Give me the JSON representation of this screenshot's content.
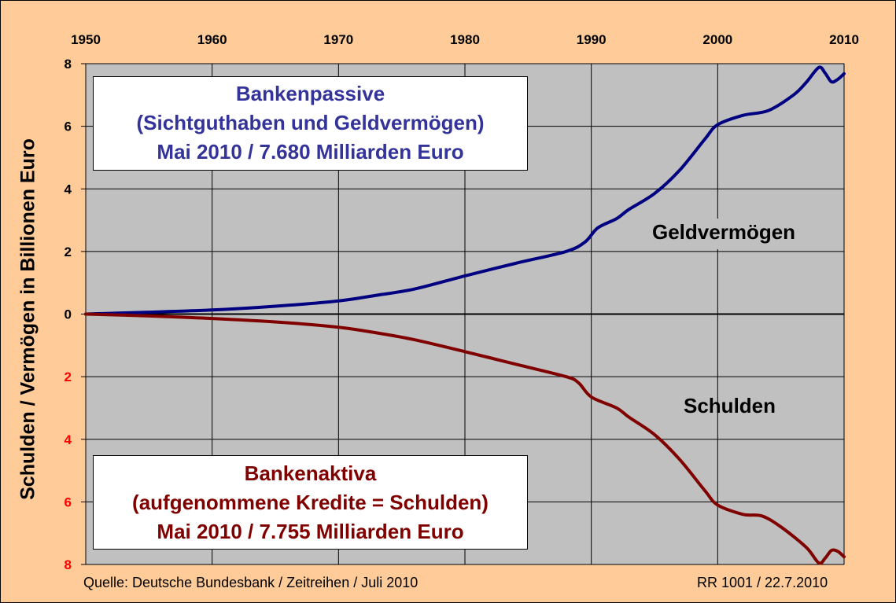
{
  "chart_data": {
    "type": "line",
    "x_ticks": [
      "1950",
      "1960",
      "1970",
      "1980",
      "1990",
      "2000",
      "2010"
    ],
    "xlim": [
      1950,
      2010
    ],
    "ylim": [
      -8,
      8
    ],
    "y_ticks_upper": [
      "8",
      "6",
      "4",
      "2",
      "0"
    ],
    "y_ticks_lower": [
      "2",
      "4",
      "6",
      "8"
    ],
    "ylabel": "Schulden / Vermögen in Billionen Euro",
    "grid": true,
    "colors": {
      "background": "#ffcc99",
      "plot_area": "#c0c0c0",
      "upper": "#000080",
      "lower": "#800000",
      "lower_ticks": "#ff0000"
    },
    "series": [
      {
        "name": "Geldvermögen",
        "x": [
          1950,
          1955,
          1960,
          1965,
          1970,
          1973,
          1976,
          1980,
          1984,
          1988,
          1989.5,
          1990.5,
          1992,
          1993,
          1995,
          1997,
          1999,
          2000,
          2002,
          2004,
          2006,
          2007,
          2008,
          2008.5,
          2009,
          2009.5,
          2010
        ],
        "values": [
          0.0,
          0.06,
          0.13,
          0.25,
          0.42,
          0.6,
          0.8,
          1.22,
          1.62,
          2.0,
          2.3,
          2.75,
          3.05,
          3.35,
          3.85,
          4.6,
          5.6,
          6.05,
          6.35,
          6.5,
          7.0,
          7.4,
          7.88,
          7.7,
          7.42,
          7.5,
          7.68
        ]
      },
      {
        "name": "Schulden",
        "x": [
          1950,
          1955,
          1960,
          1965,
          1970,
          1973,
          1976,
          1980,
          1984,
          1988,
          1989,
          1990,
          1992,
          1993,
          1995,
          1997,
          1999,
          2000,
          2002,
          2003.5,
          2005,
          2007,
          2008,
          2008.5,
          2009,
          2009.5,
          2010
        ],
        "values": [
          0.0,
          -0.06,
          -0.14,
          -0.25,
          -0.42,
          -0.6,
          -0.82,
          -1.2,
          -1.6,
          -2.0,
          -2.2,
          -2.65,
          -3.0,
          -3.3,
          -3.85,
          -4.65,
          -5.65,
          -6.1,
          -6.4,
          -6.45,
          -6.8,
          -7.45,
          -7.95,
          -7.8,
          -7.55,
          -7.58,
          -7.755
        ]
      }
    ],
    "annotations": {
      "upper_box": {
        "lines": [
          "Bankenpassive",
          "(Sichtguthaben und Geldvermögen)",
          "Mai 2010 / 7.680 Milliarden Euro"
        ]
      },
      "lower_box": {
        "lines": [
          "Bankenaktiva",
          "(aufgenommene Kredite = Schulden)",
          "Mai 2010 / 7.755 Milliarden Euro"
        ]
      },
      "upper_label": "Geldvermögen",
      "lower_label": "Schulden",
      "source": "Quelle: Deutsche Bundesbank / Zeitreihen / Juli 2010",
      "reference": "RR 1001 / 22.7.2010"
    }
  }
}
